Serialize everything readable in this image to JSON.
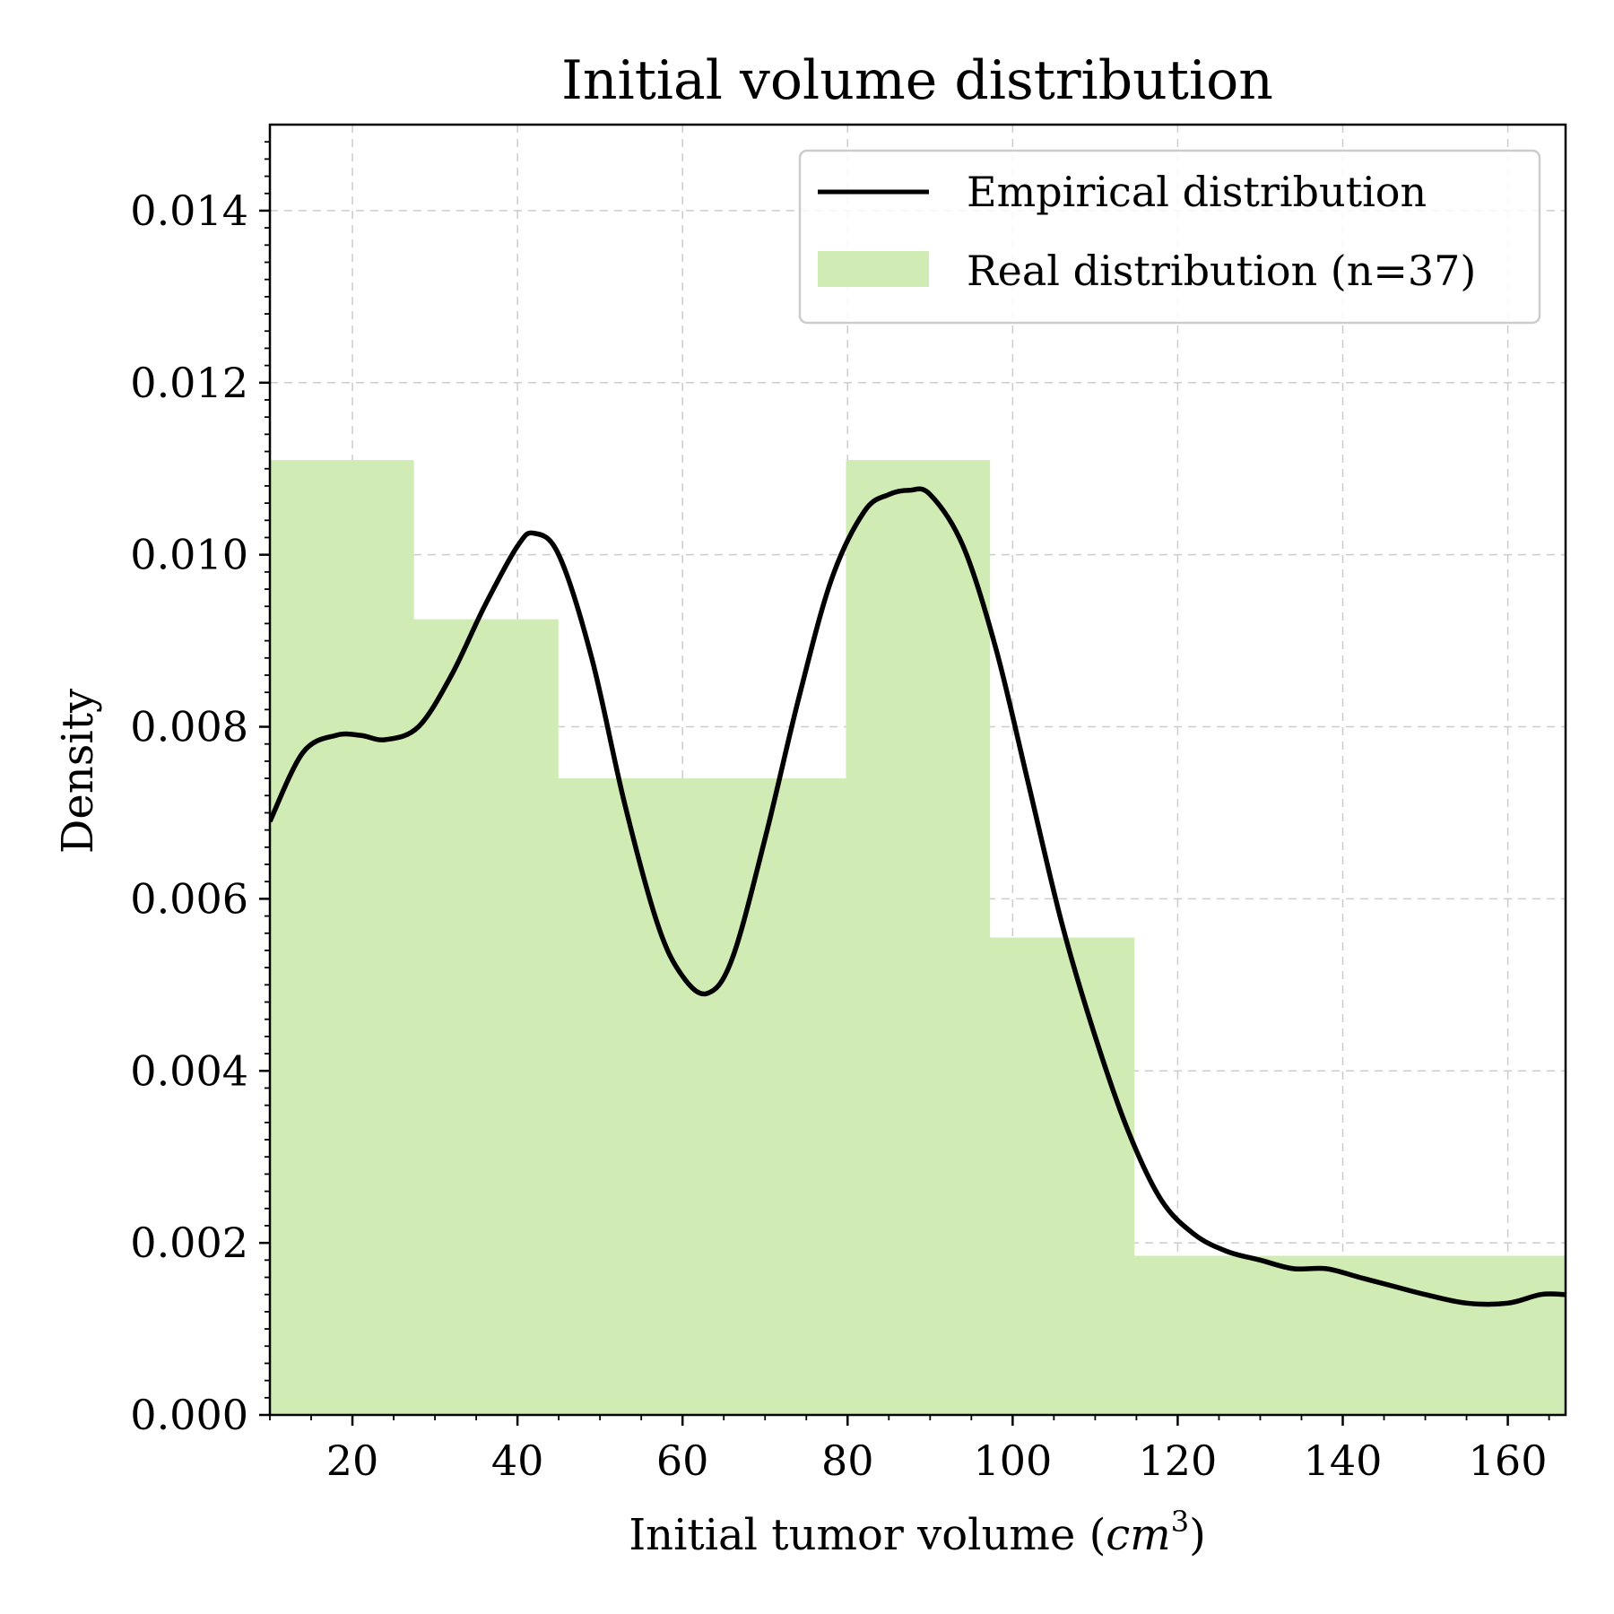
{
  "chart_data": {
    "type": "bar",
    "title": "Initial volume distribution",
    "xlabel": "Initial tumor volume (cm³)",
    "xlabel_parts": {
      "prefix": "Initial tumor volume (",
      "unit": "cm",
      "sup": "3",
      "suffix": ")"
    },
    "ylabel": "Density",
    "xlim": [
      10,
      167
    ],
    "ylim": [
      0,
      0.015
    ],
    "x_ticks": [
      20,
      40,
      60,
      80,
      100,
      120,
      140,
      160
    ],
    "x_tick_labels": [
      "20",
      "40",
      "60",
      "80",
      "100",
      "120",
      "140",
      "160"
    ],
    "y_ticks": [
      0.0,
      0.002,
      0.004,
      0.006,
      0.008,
      0.01,
      0.012,
      0.014
    ],
    "y_tick_labels": [
      "0.000",
      "0.002",
      "0.004",
      "0.006",
      "0.008",
      "0.010",
      "0.012",
      "0.014"
    ],
    "grid": true,
    "legend_position": "top-right",
    "histogram": {
      "name": "Real distribution (n=37)",
      "color": "#d0ecb4",
      "bin_edges": [
        10,
        27.4,
        44.9,
        62.3,
        79.8,
        97.2,
        114.7,
        132.1,
        149.6,
        167
      ],
      "density": [
        0.0111,
        0.00925,
        0.0074,
        0.0074,
        0.0111,
        0.00555,
        0.00185,
        0.00185,
        0.00185
      ]
    },
    "line": {
      "name": "Empirical distribution",
      "color": "#000000",
      "x": [
        10,
        14,
        18,
        21,
        24,
        28,
        32,
        36,
        40,
        42,
        45,
        49,
        53,
        57,
        60,
        63,
        66,
        70,
        74,
        78,
        82,
        85,
        87.5,
        90,
        94,
        98,
        102,
        106,
        110,
        114,
        118,
        122,
        126,
        130,
        134,
        138,
        142,
        146,
        150,
        155,
        160,
        164,
        167
      ],
      "y": [
        0.0069,
        0.0077,
        0.0079,
        0.0079,
        0.00785,
        0.008,
        0.0086,
        0.0094,
        0.0101,
        0.01025,
        0.01,
        0.0088,
        0.0071,
        0.0057,
        0.0051,
        0.0049,
        0.0053,
        0.0067,
        0.0083,
        0.0097,
        0.0105,
        0.0107,
        0.01075,
        0.0107,
        0.0101,
        0.0089,
        0.0073,
        0.0057,
        0.0044,
        0.0033,
        0.0025,
        0.0021,
        0.0019,
        0.0018,
        0.0017,
        0.0017,
        0.0016,
        0.0015,
        0.0014,
        0.0013,
        0.0013,
        0.0014,
        0.0014
      ]
    }
  }
}
